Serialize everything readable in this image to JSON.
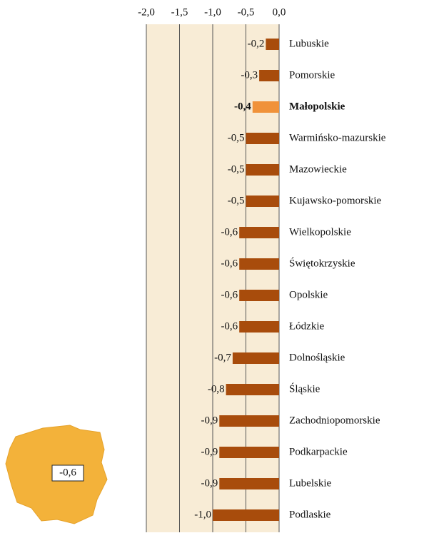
{
  "chart_data": {
    "type": "barh",
    "categories": [
      "Lubuskie",
      "Pomorskie",
      "Małopolskie",
      "Warmińsko-mazurskie",
      "Mazowieckie",
      "Kujawsko-pomorskie",
      "Wielkopolskie",
      "Świętokrzyskie",
      "Opolskie",
      "Łódzkie",
      "Dolnośląskie",
      "Śląskie",
      "Zachodniopomorskie",
      "Podkarpackie",
      "Lubelskie",
      "Podlaskie"
    ],
    "values": [
      -0.2,
      -0.3,
      -0.4,
      -0.5,
      -0.5,
      -0.5,
      -0.6,
      -0.6,
      -0.6,
      -0.6,
      -0.7,
      -0.8,
      -0.9,
      -0.9,
      -0.9,
      -1.0
    ],
    "value_labels": [
      "-0,2",
      "-0,3",
      "-0,4",
      "-0,5",
      "-0,5",
      "-0,5",
      "-0,6",
      "-0,6",
      "-0,6",
      "-0,6",
      "-0,7",
      "-0,8",
      "-0,9",
      "-0,9",
      "-0,9",
      "-1,0"
    ],
    "color": "#a84c0c",
    "highlight_index": 2,
    "highlight_color": "#f0923a",
    "xlim": [
      -2.0,
      0.0
    ],
    "xticks": [
      {
        "value": -2.0,
        "label": "-2,0"
      },
      {
        "value": -1.5,
        "label": "-1,5"
      },
      {
        "value": -1.0,
        "label": "-1,0"
      },
      {
        "value": -0.5,
        "label": "-0,5"
      },
      {
        "value": 0.0,
        "label": "0,0"
      }
    ],
    "grid": true,
    "inset_label": "-0,6"
  }
}
